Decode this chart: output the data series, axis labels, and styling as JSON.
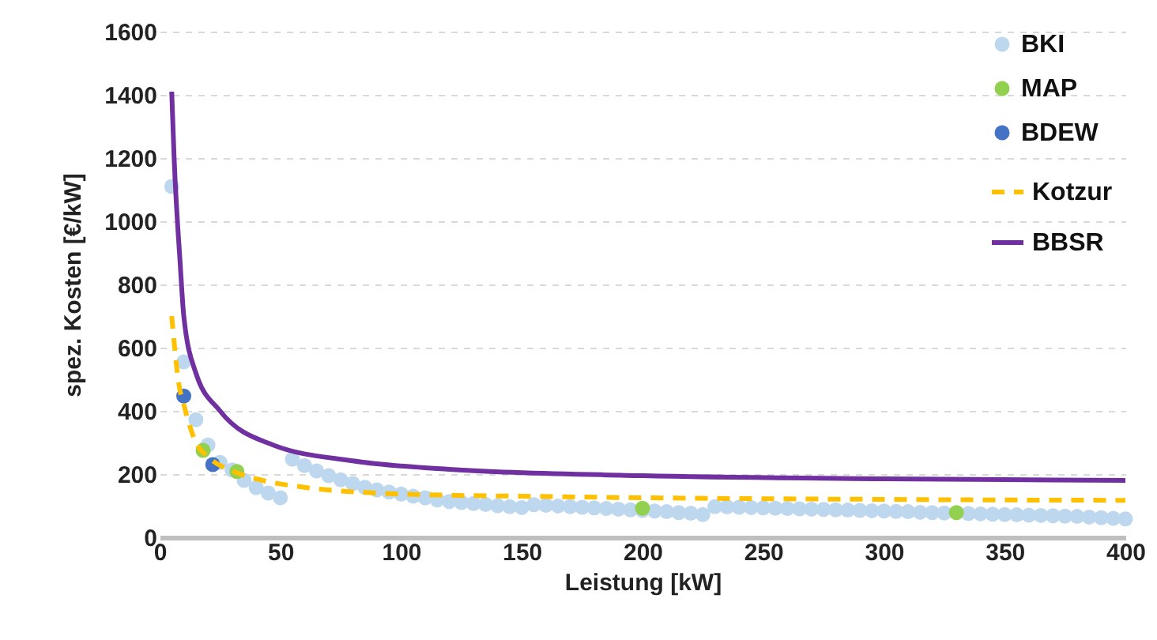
{
  "chart_data": {
    "type": "scatter",
    "xlabel": "Leistung [kW]",
    "ylabel": "spez. Kosten [€/kW]",
    "xlim": [
      0,
      400
    ],
    "xticks": [
      0,
      50,
      100,
      150,
      200,
      250,
      300,
      350,
      400
    ],
    "ylim": [
      0,
      1600
    ],
    "yticks": [
      0,
      200,
      400,
      600,
      800,
      1000,
      1200,
      1400,
      1600
    ],
    "grid": "y",
    "legend": "top right",
    "marker": "circle",
    "series": [
      {
        "name": "BKI",
        "color": "#bdd7ee",
        "x": [
          5,
          10,
          15,
          20,
          25,
          30,
          35,
          40,
          45,
          50,
          55,
          60,
          65,
          70,
          75,
          80,
          85,
          90,
          95,
          100,
          105,
          110,
          115,
          120,
          125,
          130,
          135,
          140,
          145,
          150,
          155,
          160,
          165,
          170,
          175,
          180,
          185,
          190,
          195,
          200,
          205,
          210,
          215,
          220,
          225,
          230,
          235,
          240,
          245,
          250,
          255,
          260,
          265,
          270,
          275,
          280,
          285,
          290,
          295,
          300,
          305,
          310,
          315,
          320,
          325,
          330,
          335,
          340,
          345,
          350,
          355,
          360,
          365,
          370,
          375,
          380,
          385,
          390,
          395,
          400
        ],
        "values": [
          1110,
          555,
          372,
          292,
          237,
          213,
          180,
          157,
          140,
          125,
          247,
          227,
          210,
          195,
          182,
          170,
          158,
          150,
          143,
          137,
          130,
          125,
          118,
          113,
          110,
          107,
          104,
          100,
          97,
          94,
          103,
          101,
          99,
          97,
          95,
          93,
          91,
          89,
          87,
          85,
          83,
          81,
          78,
          76,
          72,
          97,
          96,
          95,
          94,
          93,
          92,
          91,
          90,
          89,
          88,
          87,
          86,
          85,
          84,
          83,
          82,
          81,
          79,
          78,
          77,
          null,
          75,
          74,
          73,
          72,
          71,
          70,
          69,
          68,
          67,
          66,
          64,
          62,
          60,
          58
        ]
      },
      {
        "name": "MAP",
        "color": "#92d050",
        "x": [
          18,
          32,
          200,
          330
        ],
        "values": [
          275,
          208,
          92,
          78
        ]
      },
      {
        "name": "BDEW",
        "color": "#4472c4",
        "x": [
          10,
          22
        ],
        "values": [
          447,
          230
        ]
      },
      {
        "name": "Kotzur",
        "type": "line",
        "marker": "none",
        "line_style": "dashed",
        "color": "#ffc000",
        "x": [
          5,
          8,
          10,
          15,
          20,
          30,
          40,
          60,
          90,
          120,
          150,
          200,
          250,
          300,
          350,
          400
        ],
        "values": [
          700,
          483,
          420,
          300,
          255,
          210,
          185,
          158,
          140,
          133,
          130,
          125,
          122,
          120,
          118,
          117
        ]
      },
      {
        "name": "BBSR",
        "type": "line",
        "marker": "none",
        "line_style": "solid",
        "color": "#7030a0",
        "x": [
          5,
          6,
          8.5,
          10,
          15,
          25,
          47,
          80,
          120,
          200,
          300,
          400
        ],
        "values": [
          1410,
          1200,
          867,
          700,
          520,
          400,
          292,
          242,
          215,
          195,
          185,
          180
        ]
      }
    ]
  }
}
